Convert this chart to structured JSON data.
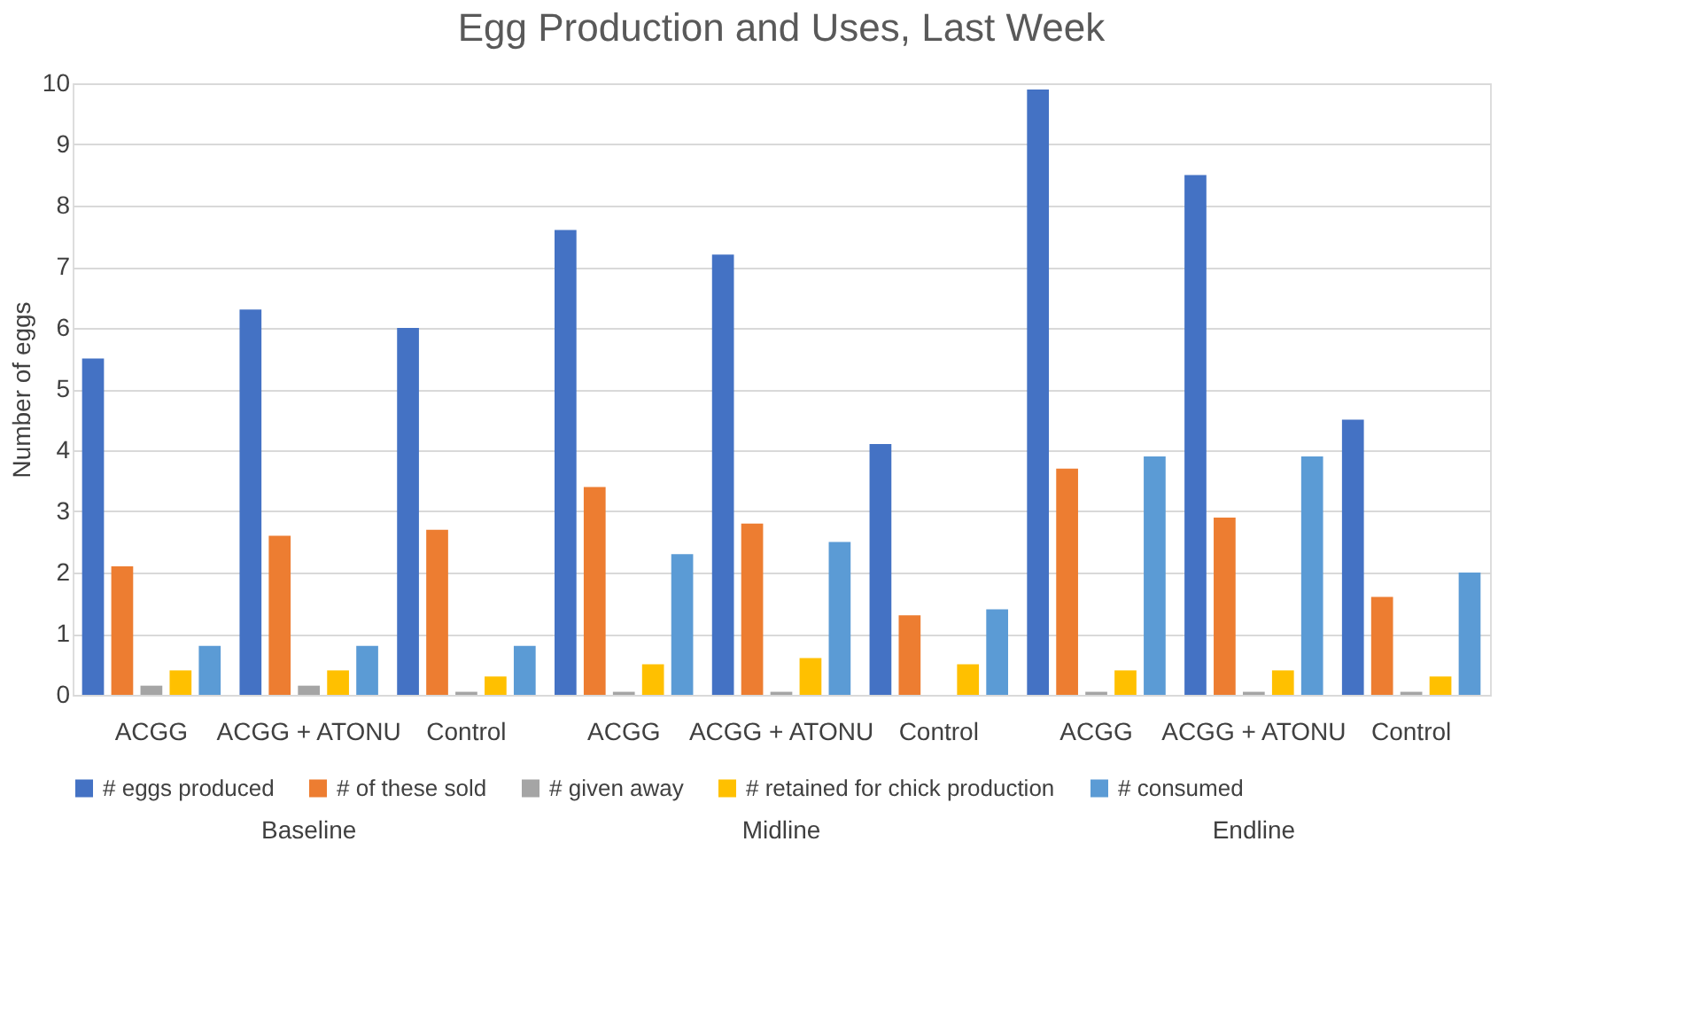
{
  "chart_data": {
    "type": "bar",
    "title": "Egg Production and Uses, Last Week",
    "ylabel": "Number of eggs",
    "categories": [
      "ACGG",
      "ACGG + ATONU",
      "Control",
      "ACGG",
      "ACGG + ATONU",
      "Control",
      "ACGG",
      "ACGG + ATONU",
      "Control"
    ],
    "annotations": [
      "Baseline",
      "Midline",
      "Endline"
    ],
    "series": [
      {
        "name": "# eggs produced",
        "color": "#4472c4",
        "values": [
          5.5,
          6.3,
          6.0,
          7.6,
          7.2,
          4.1,
          9.9,
          8.5,
          4.5
        ]
      },
      {
        "name": "# of these sold",
        "color": "#ed7d31",
        "values": [
          2.1,
          2.6,
          2.7,
          3.4,
          2.8,
          1.3,
          3.7,
          2.9,
          1.6
        ]
      },
      {
        "name": "# given away",
        "color": "#a5a5a5",
        "values": [
          0.15,
          0.15,
          0.05,
          0.05,
          0.05,
          0,
          0.05,
          0.05,
          0.05
        ]
      },
      {
        "name": "# retained for chick production",
        "color": "#ffc000",
        "values": [
          0.4,
          0.4,
          0.3,
          0.5,
          0.6,
          0.5,
          0.4,
          0.4,
          0.3
        ]
      },
      {
        "name": "# consumed",
        "color": "#5b9bd5",
        "values": [
          0.8,
          0.8,
          0.8,
          2.3,
          2.5,
          1.4,
          3.9,
          3.9,
          2.0
        ]
      }
    ],
    "ylim": [
      0,
      10
    ],
    "yticks": [
      0,
      1,
      2,
      3,
      4,
      5,
      6,
      7,
      8,
      9,
      10
    ],
    "grid": "y",
    "legend": "bottom"
  }
}
